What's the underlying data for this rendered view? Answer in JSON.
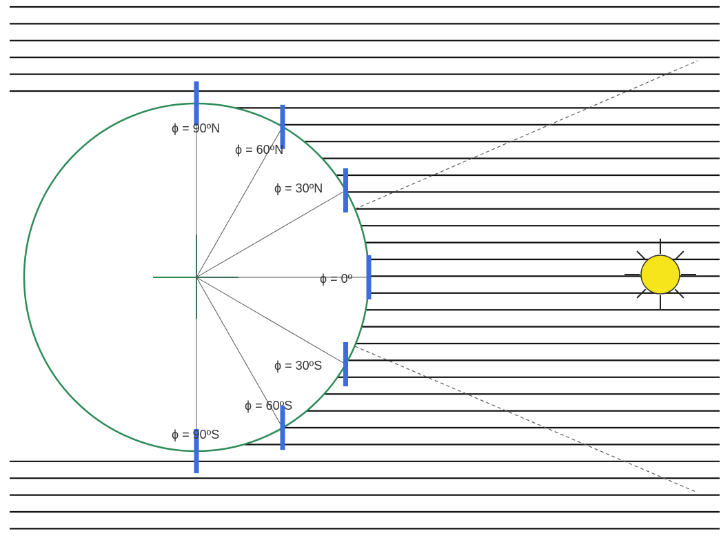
{
  "colors": {
    "background": "#ffffff",
    "ray": "#111111",
    "earth_outline": "#2e8b57",
    "earth_axes": "#2e8b57",
    "latitude_radius": "#555555",
    "blue_marker": "#3b6ce0",
    "sun_fill": "#f5e51a",
    "sun_outline": "#333333",
    "sun_rays": "#222222",
    "dashed_line": "#555555"
  },
  "latitude_labels": [
    {
      "id": "90N",
      "text": "ϕ = 90ºN"
    },
    {
      "id": "60N",
      "text": "ϕ = 60ºN"
    },
    {
      "id": "30N",
      "text": "ϕ = 30ºN"
    },
    {
      "id": "0",
      "text": "ϕ = 0º"
    },
    {
      "id": "30S",
      "text": "ϕ = 30ºS"
    },
    {
      "id": "60S",
      "text": "ϕ = 60ºS"
    },
    {
      "id": "90S",
      "text": "ϕ = 90ºS"
    }
  ],
  "latitudes_deg": [
    90,
    60,
    30,
    0,
    -30,
    -60,
    -90
  ],
  "icons": {
    "sun": "sun-icon"
  }
}
